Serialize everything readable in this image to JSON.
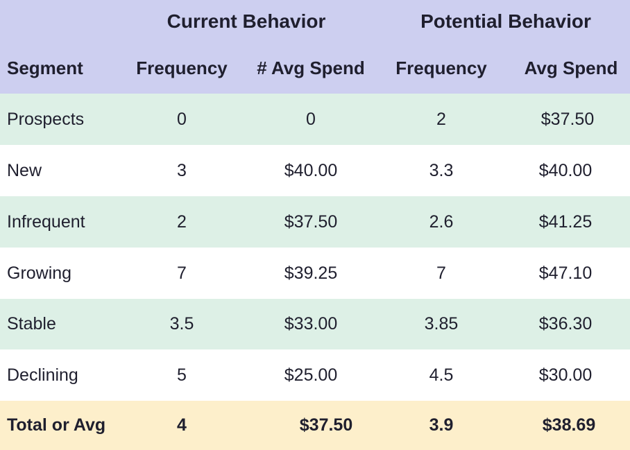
{
  "groups": {
    "current": "Current Behavior",
    "potential": "Potential Behavior"
  },
  "columns": {
    "segment": "Segment",
    "cur_freq": "Frequency",
    "cur_spend": "# Avg Spend",
    "pot_freq": "Frequency",
    "pot_spend": "Avg Spend"
  },
  "rows": [
    {
      "segment": "Prospects",
      "cur_freq": "0",
      "cur_spend": "0",
      "pot_freq": "2",
      "pot_spend": "$37.50"
    },
    {
      "segment": "New",
      "cur_freq": "3",
      "cur_spend": "$40.00",
      "pot_freq": "3.3",
      "pot_spend": "$40.00"
    },
    {
      "segment": "Infrequent",
      "cur_freq": "2",
      "cur_spend": "$37.50",
      "pot_freq": "2.6",
      "pot_spend": "$41.25"
    },
    {
      "segment": "Growing",
      "cur_freq": "7",
      "cur_spend": "$39.25",
      "pot_freq": "7",
      "pot_spend": "$47.10"
    },
    {
      "segment": "Stable",
      "cur_freq": "3.5",
      "cur_spend": "$33.00",
      "pot_freq": "3.85",
      "pot_spend": "$36.30"
    },
    {
      "segment": "Declining",
      "cur_freq": "5",
      "cur_spend": "$25.00",
      "pot_freq": "4.5",
      "pot_spend": "$30.00"
    }
  ],
  "total": {
    "segment": "Total or Avg",
    "cur_freq": "4",
    "cur_spend": "$37.50",
    "pot_freq": "3.9",
    "pot_spend": "$38.69"
  },
  "colors": {
    "header_bg": "#cdcff0",
    "band_green": "#ddf0e6",
    "band_white": "#ffffff",
    "total_bg": "#fdefcb"
  }
}
